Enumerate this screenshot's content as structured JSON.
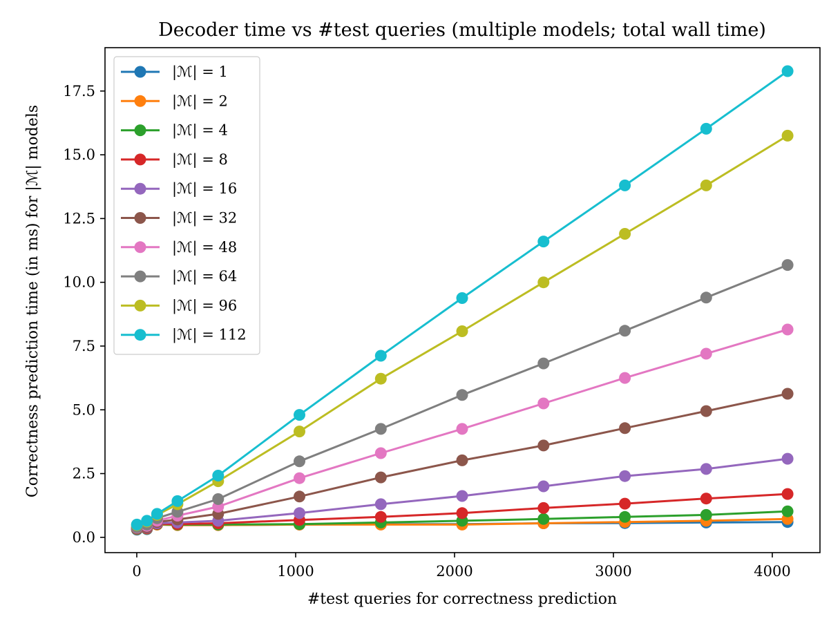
{
  "chart_data": {
    "type": "line",
    "title": "Decoder time vs #test queries (multiple models; total wall time)",
    "xlabel": "#test queries for correctness prediction",
    "ylabel": "Correctness prediction time (in ms) for |ℳ| models",
    "xlim": [
      -200,
      4300
    ],
    "ylim": [
      -0.6,
      19.2
    ],
    "xticks": [
      0,
      1000,
      2000,
      3000,
      4000
    ],
    "xtick_labels": [
      "0",
      "1000",
      "2000",
      "3000",
      "4000"
    ],
    "yticks": [
      0.0,
      2.5,
      5.0,
      7.5,
      10.0,
      12.5,
      15.0,
      17.5
    ],
    "ytick_labels": [
      "0.0",
      "2.5",
      "5.0",
      "7.5",
      "10.0",
      "12.5",
      "15.0",
      "17.5"
    ],
    "grid": false,
    "legend_position": "top-left",
    "x": [
      1,
      64,
      128,
      256,
      512,
      1024,
      1536,
      2048,
      2560,
      3072,
      3584,
      4096
    ],
    "series": [
      {
        "name": "|ℳ| = 1",
        "color": "#1f77b4",
        "values": [
          0.3,
          0.32,
          0.5,
          0.48,
          0.48,
          0.5,
          0.52,
          0.52,
          0.55,
          0.56,
          0.58,
          0.6
        ]
      },
      {
        "name": "|ℳ| = 2",
        "color": "#ff7f0e",
        "values": [
          0.32,
          0.34,
          0.5,
          0.48,
          0.48,
          0.5,
          0.5,
          0.5,
          0.55,
          0.6,
          0.65,
          0.72
        ]
      },
      {
        "name": "|ℳ| = 4",
        "color": "#2ca02c",
        "values": [
          0.33,
          0.35,
          0.52,
          0.5,
          0.5,
          0.52,
          0.58,
          0.65,
          0.72,
          0.8,
          0.88,
          1.02
        ]
      },
      {
        "name": "|ℳ| = 8",
        "color": "#d62728",
        "values": [
          0.34,
          0.36,
          0.53,
          0.52,
          0.55,
          0.68,
          0.8,
          0.95,
          1.15,
          1.32,
          1.52,
          1.7
        ]
      },
      {
        "name": "|ℳ| = 16",
        "color": "#9467bd",
        "values": [
          0.35,
          0.38,
          0.55,
          0.58,
          0.65,
          0.95,
          1.3,
          1.62,
          2.0,
          2.4,
          2.68,
          3.08
        ]
      },
      {
        "name": "|ℳ| = 32",
        "color": "#8c564b",
        "values": [
          0.36,
          0.4,
          0.6,
          0.7,
          0.92,
          1.6,
          2.35,
          3.02,
          3.6,
          4.28,
          4.95,
          5.63
        ]
      },
      {
        "name": "|ℳ| = 48",
        "color": "#e377c2",
        "values": [
          0.38,
          0.45,
          0.65,
          0.85,
          1.2,
          2.32,
          3.3,
          4.25,
          5.25,
          6.25,
          7.2,
          8.15
        ]
      },
      {
        "name": "|ℳ| = 64",
        "color": "#7f7f7f",
        "values": [
          0.4,
          0.5,
          0.75,
          1.0,
          1.5,
          2.98,
          4.25,
          5.58,
          6.82,
          8.1,
          9.4,
          10.68
        ]
      },
      {
        "name": "|ℳ| = 96",
        "color": "#bcbd22",
        "values": [
          0.48,
          0.62,
          0.88,
          1.3,
          2.2,
          4.15,
          6.22,
          8.08,
          10.0,
          11.9,
          13.8,
          15.75
        ]
      },
      {
        "name": "|ℳ| = 112",
        "color": "#17becf",
        "values": [
          0.5,
          0.65,
          0.92,
          1.42,
          2.42,
          4.8,
          7.12,
          9.38,
          11.6,
          13.8,
          16.02,
          18.28
        ]
      }
    ]
  }
}
